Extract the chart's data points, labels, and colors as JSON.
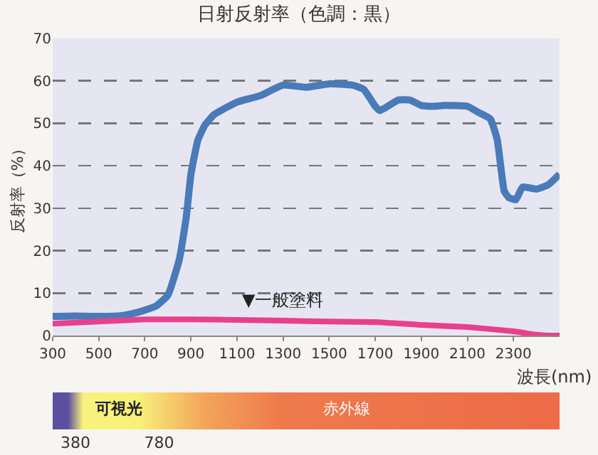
{
  "chart_data": {
    "type": "line",
    "title": "日射反射率（色調：黒）",
    "xlabel": "波長(nm)",
    "ylabel": "反射率（%）",
    "xlim": [
      300,
      2500
    ],
    "xticks": [
      300,
      500,
      700,
      900,
      1100,
      1300,
      1500,
      1700,
      1900,
      2100,
      2300
    ],
    "ylim": [
      0,
      70
    ],
    "yticks": [
      0,
      10,
      20,
      30,
      40,
      50,
      60,
      70
    ],
    "grid": "y",
    "legend": false,
    "series": [
      {
        "color": "#4a7ab8",
        "x": [
          300,
          400,
          500,
          600,
          650,
          700,
          750,
          800,
          850,
          880,
          900,
          930,
          960,
          1000,
          1100,
          1200,
          1300,
          1400,
          1500,
          1600,
          1650,
          1700,
          1720,
          1800,
          1850,
          1900,
          1950,
          2000,
          2100,
          2150,
          2200,
          2230,
          2260,
          2280,
          2310,
          2340,
          2400,
          2450,
          2500
        ],
        "values": [
          4.5,
          4.6,
          4.5,
          4.7,
          5.2,
          6,
          7,
          9.5,
          18,
          28,
          38,
          46,
          49.5,
          52,
          55,
          56.5,
          59,
          58.5,
          59.3,
          59,
          58,
          54,
          53,
          55.5,
          55.5,
          54.2,
          54,
          54.2,
          54,
          52.5,
          51,
          46,
          34,
          32.5,
          32,
          35,
          34.5,
          35.5,
          38
        ]
      },
      {
        "name": "▼一般塗料",
        "color": "#e8408c",
        "x": [
          300,
          500,
          700,
          900,
          1100,
          1300,
          1500,
          1700,
          1900,
          2100,
          2300,
          2400,
          2450,
          2500
        ],
        "values": [
          2.8,
          3.3,
          3.8,
          3.8,
          3.7,
          3.5,
          3.3,
          3.2,
          2.5,
          2,
          1,
          0.2,
          0,
          0
        ]
      }
    ],
    "annotations": [
      "可視光",
      "赤外線",
      "380",
      "780"
    ]
  }
}
